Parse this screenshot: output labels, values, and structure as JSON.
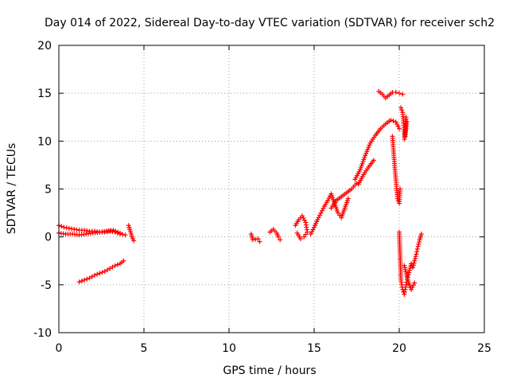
{
  "chart_data": {
    "type": "scatter",
    "title": "Day 014 of 2022, Sidereal Day-to-day VTEC variation (SDTVAR) for receiver sch2",
    "xlabel": "GPS time / hours",
    "ylabel": "SDTVAR / TECUs",
    "xlim": [
      0,
      25
    ],
    "ylim": [
      -10,
      20
    ],
    "x_ticks": [
      "0",
      "5",
      "10",
      "15",
      "20",
      "25"
    ],
    "y_ticks": [
      "-10",
      "-5",
      "0",
      "5",
      "10",
      "15",
      "20"
    ],
    "grid": true,
    "marker": "+",
    "color": "#ff0000",
    "series": [
      {
        "name": "SDTVAR",
        "segments": [
          {
            "x": [
              0.0,
              0.3,
              0.6,
              0.9,
              1.2,
              1.5,
              1.8,
              2.1,
              2.4,
              2.7,
              3.0,
              3.3,
              3.6,
              3.9
            ],
            "y": [
              1.2,
              1.0,
              0.9,
              0.8,
              0.7,
              0.7,
              0.6,
              0.6,
              0.5,
              0.5,
              0.6,
              0.5,
              0.3,
              0.2
            ]
          },
          {
            "x": [
              0.0,
              0.4,
              0.8,
              1.2,
              1.6,
              2.0,
              2.4,
              2.8,
              3.2,
              3.6
            ],
            "y": [
              0.4,
              0.3,
              0.3,
              0.2,
              0.3,
              0.4,
              0.5,
              0.6,
              0.7,
              0.4
            ]
          },
          {
            "x": [
              4.1,
              4.2,
              4.3,
              4.4
            ],
            "y": [
              1.2,
              0.6,
              0.0,
              -0.4
            ]
          },
          {
            "x": [
              1.2,
              1.5,
              1.8,
              2.1,
              2.4,
              2.7,
              3.0,
              3.3,
              3.6,
              3.8
            ],
            "y": [
              -4.7,
              -4.5,
              -4.3,
              -4.0,
              -3.8,
              -3.6,
              -3.3,
              -3.0,
              -2.8,
              -2.5
            ]
          },
          {
            "x": [
              11.3,
              11.4,
              11.7,
              11.8
            ],
            "y": [
              0.3,
              -0.3,
              -0.2,
              -0.5
            ]
          },
          {
            "x": [
              12.4,
              12.6,
              12.8,
              12.9,
              13.0
            ],
            "y": [
              0.5,
              0.8,
              0.4,
              0.0,
              -0.3
            ]
          },
          {
            "x": [
              13.9,
              14.1,
              14.3,
              14.5,
              14.6,
              14.4,
              14.2,
              14.0
            ],
            "y": [
              1.2,
              1.8,
              2.2,
              1.5,
              0.5,
              0.0,
              -0.2,
              0.4
            ]
          },
          {
            "x": [
              14.8,
              15.0,
              15.2,
              15.4,
              15.6,
              15.8,
              16.0,
              16.2,
              16.4,
              16.6,
              16.8,
              17.0
            ],
            "y": [
              0.3,
              1.0,
              1.8,
              2.5,
              3.2,
              3.8,
              4.5,
              3.5,
              2.5,
              2.0,
              3.0,
              4.0
            ]
          },
          {
            "x": [
              16.0,
              16.3,
              16.6,
              16.9,
              17.2,
              17.5
            ],
            "y": [
              3.0,
              3.8,
              4.2,
              4.6,
              5.0,
              5.6
            ]
          },
          {
            "x": [
              17.4,
              17.7,
              18.0,
              18.3,
              18.6,
              18.9,
              19.2,
              19.5,
              19.8,
              20.0
            ],
            "y": [
              6.0,
              7.0,
              8.5,
              9.8,
              10.6,
              11.3,
              11.8,
              12.2,
              12.0,
              11.3
            ]
          },
          {
            "x": [
              17.6,
              17.9,
              18.2,
              18.5
            ],
            "y": [
              5.5,
              6.5,
              7.3,
              8.0
            ]
          },
          {
            "x": [
              18.8,
              19.0,
              19.2,
              19.4,
              19.6,
              19.8,
              20.0,
              20.2
            ],
            "y": [
              15.2,
              14.9,
              14.5,
              14.8,
              15.1,
              15.1,
              15.0,
              14.9
            ]
          },
          {
            "x": [
              19.6,
              19.75,
              19.9,
              20.0,
              20.05
            ],
            "y": [
              10.5,
              7.0,
              4.0,
              3.5,
              5.0
            ]
          },
          {
            "x": [
              20.1,
              20.2,
              20.3,
              20.35,
              20.4,
              20.3,
              20.45
            ],
            "y": [
              13.5,
              13.0,
              11.0,
              10.5,
              12.5,
              10.2,
              12.0
            ]
          },
          {
            "x": [
              20.0,
              20.05,
              20.1,
              20.2,
              20.3,
              20.4,
              20.5,
              20.6,
              20.7,
              20.8,
              20.9,
              21.0,
              21.1,
              21.2,
              21.3
            ],
            "y": [
              0.5,
              -2.0,
              -4.5,
              -5.5,
              -6.0,
              -5.0,
              -4.2,
              -3.5,
              -2.8,
              -3.2,
              -2.5,
              -1.8,
              -1.0,
              -0.3,
              0.3
            ]
          },
          {
            "x": [
              20.3,
              20.5,
              20.7,
              20.9
            ],
            "y": [
              -3.0,
              -4.5,
              -5.5,
              -4.8
            ]
          }
        ]
      }
    ]
  }
}
